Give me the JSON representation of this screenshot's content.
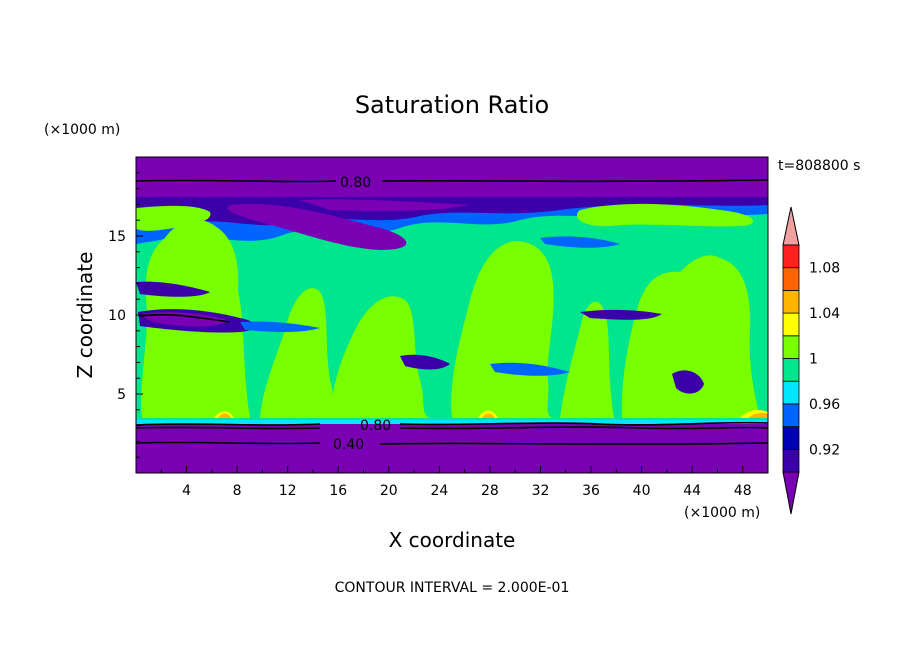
{
  "chart_data": {
    "type": "heatmap",
    "title": "Saturation Ratio",
    "xlabel": "X coordinate",
    "ylabel": "Z coordinate",
    "x_unit": "(×1000 m)",
    "y_unit": "(×1000 m)",
    "time_label": "t=808800 s",
    "footer": "CONTOUR INTERVAL = 2.000E-01",
    "xlim": [
      0,
      50
    ],
    "ylim": [
      0,
      20
    ],
    "x_ticks": [
      "4",
      "8",
      "12",
      "16",
      "20",
      "24",
      "28",
      "32",
      "36",
      "40",
      "44",
      "48"
    ],
    "y_ticks": [
      "5",
      "10",
      "15"
    ],
    "colorbar": {
      "levels": [
        0.92,
        0.94,
        0.96,
        0.98,
        1.0,
        1.02,
        1.04,
        1.06,
        1.08,
        1.1
      ],
      "tick_labels": [
        "1.08",
        "1.04",
        "1",
        "0.96",
        "0.92"
      ],
      "tick_values": [
        1.08,
        1.04,
        1.0,
        0.96,
        0.92
      ],
      "colors": [
        "#7a00b4",
        "#3c00aa",
        "#0000b4",
        "#0064ff",
        "#00e6ff",
        "#00e68c",
        "#78ff00",
        "#ffff00",
        "#ffb400",
        "#ff6400",
        "#ff2020",
        "#f0a0a0"
      ]
    },
    "contour_labels": [
      "0.80",
      "0.80",
      "0.40"
    ],
    "fields": {
      "background": "#00e68c",
      "dry_layer_color": "#7a00b4",
      "cloud_color": "#78ff00",
      "supersat_color": "#ffb400"
    }
  }
}
